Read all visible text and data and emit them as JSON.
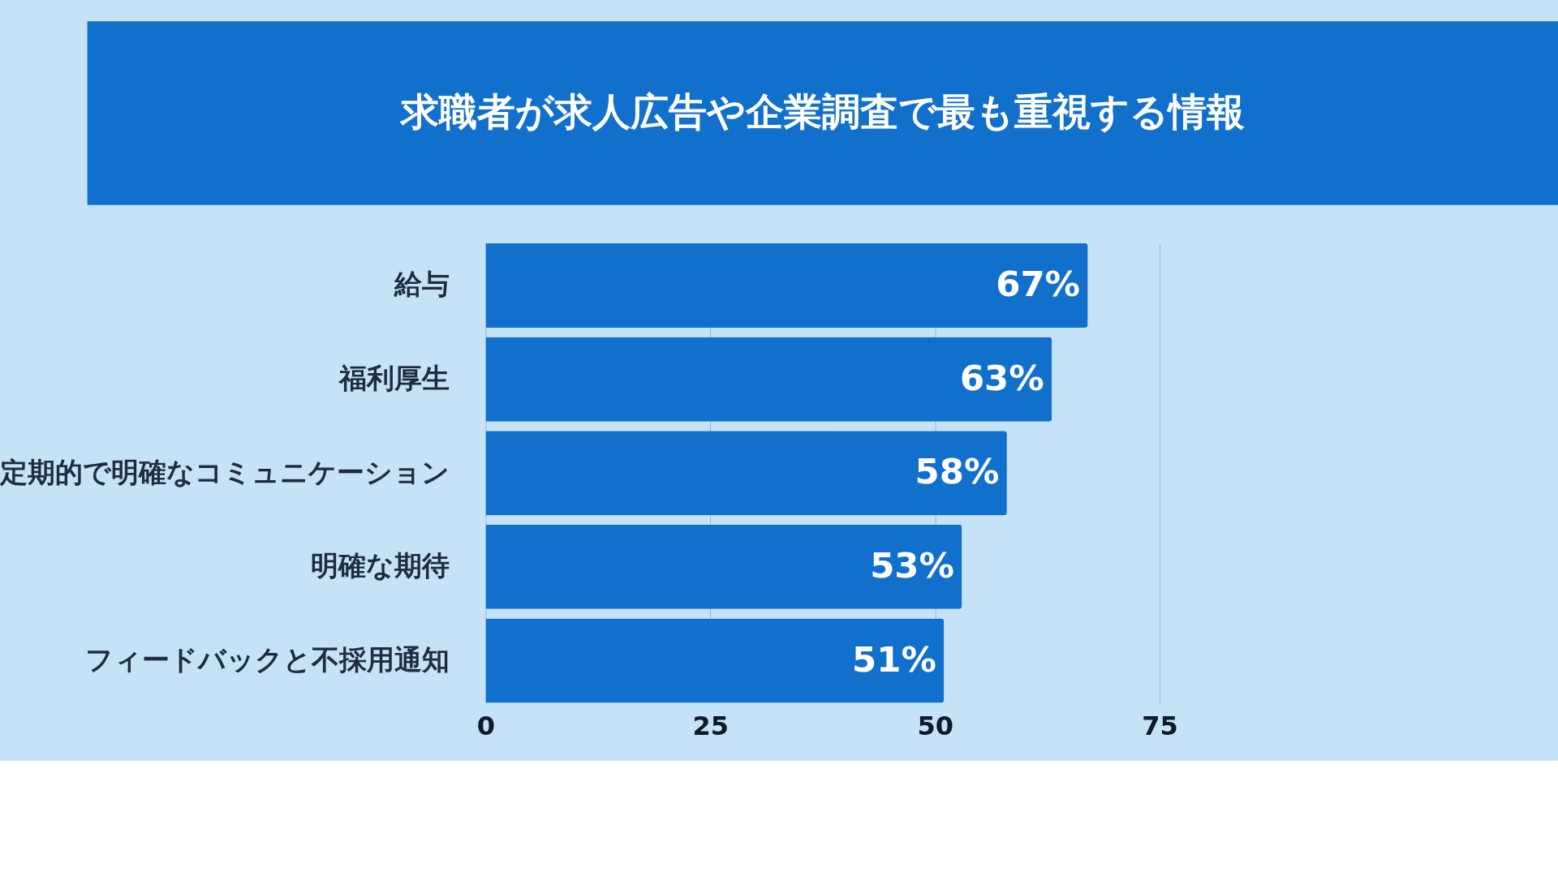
{
  "chart_data": {
    "type": "bar",
    "orientation": "horizontal",
    "title": "求職者が求人広告や企業調査で最も重視する情報",
    "categories": [
      "給与",
      "福利厚生",
      "定期的で明確なコミュニケーション",
      "明確な期待",
      "フィードバックと不採用通知"
    ],
    "values": [
      67,
      63,
      58,
      53,
      51
    ],
    "value_labels": [
      "67%",
      "63%",
      "58%",
      "53%",
      "51%"
    ],
    "color": "#1170cc",
    "xlim": [
      0,
      75
    ],
    "xticks": [
      0,
      25,
      50,
      75
    ],
    "grid": "x"
  }
}
